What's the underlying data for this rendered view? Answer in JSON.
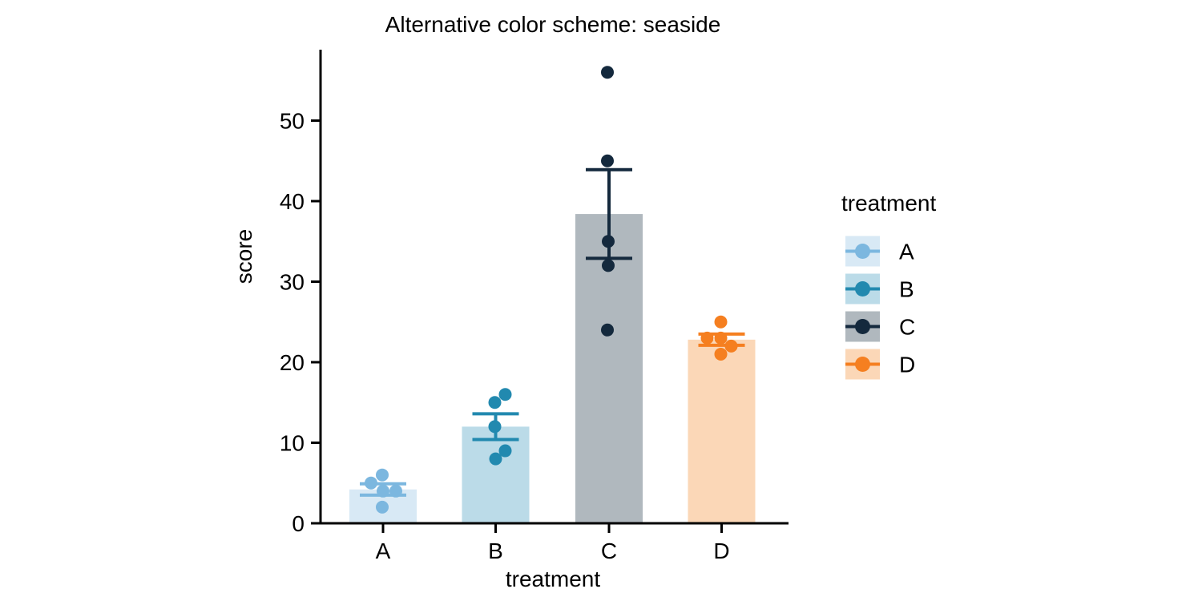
{
  "chart_data": {
    "type": "bar",
    "title": "Alternative color scheme: seaside",
    "xlabel": "treatment",
    "ylabel": "score",
    "categories": [
      "A",
      "B",
      "C",
      "D"
    ],
    "yticks": [
      0,
      10,
      20,
      30,
      40,
      50
    ],
    "ylim": [
      0,
      58
    ],
    "grid": false,
    "error_bar_type": "mean_se",
    "legend": {
      "title": "treatment",
      "position": "right",
      "labels": [
        "A",
        "B",
        "C",
        "D"
      ]
    },
    "series": [
      {
        "name": "A",
        "mean": 4.2,
        "se": 0.7,
        "fill": "#D8E9F5",
        "color": "#7CB7DF",
        "points": [
          {
            "value": 6,
            "dx": -1
          },
          {
            "value": 5,
            "dx": -15
          },
          {
            "value": 4,
            "dx": 0
          },
          {
            "value": 4,
            "dx": 16
          },
          {
            "value": 2,
            "dx": -1
          }
        ]
      },
      {
        "name": "B",
        "mean": 12,
        "se": 1.6,
        "fill": "#BBDBE8",
        "color": "#2289AF",
        "points": [
          {
            "value": 16,
            "dx": 12
          },
          {
            "value": 15,
            "dx": -1
          },
          {
            "value": 12,
            "dx": -1
          },
          {
            "value": 9,
            "dx": 12
          },
          {
            "value": 8,
            "dx": 0
          }
        ]
      },
      {
        "name": "C",
        "mean": 38.4,
        "se": 5.5,
        "fill": "#B0B8BE",
        "color": "#14293D",
        "points": [
          {
            "value": 56,
            "dx": -2
          },
          {
            "value": 45,
            "dx": -2
          },
          {
            "value": 35,
            "dx": -1
          },
          {
            "value": 32,
            "dx": -1
          },
          {
            "value": 24,
            "dx": -2
          }
        ]
      },
      {
        "name": "D",
        "mean": 22.8,
        "se": 0.7,
        "fill": "#FBD7B7",
        "color": "#F57F20",
        "points": [
          {
            "value": 25,
            "dx": -1
          },
          {
            "value": 23,
            "dx": -18
          },
          {
            "value": 23,
            "dx": -1
          },
          {
            "value": 22,
            "dx": 12
          },
          {
            "value": 21,
            "dx": -1
          }
        ]
      }
    ],
    "axis_color": "#000000"
  }
}
